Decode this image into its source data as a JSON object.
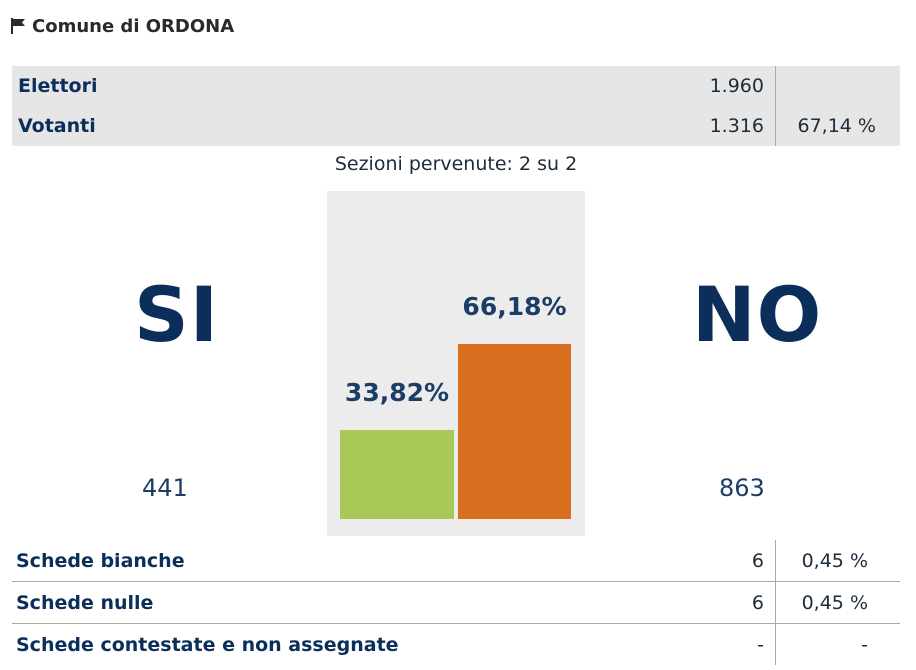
{
  "header": {
    "title": "Comune di ORDONA",
    "icon": "flag-icon"
  },
  "summary": {
    "elettori": {
      "label": "Elettori",
      "value": "1.960"
    },
    "votanti": {
      "label": "Votanti",
      "value": "1.316",
      "percent": "67,14 %"
    }
  },
  "sezioni": "Sezioni pervenute: 2 su 2",
  "options": {
    "si": {
      "label": "SI",
      "count": "441",
      "percent_label": "33,82%"
    },
    "no": {
      "label": "NO",
      "count": "863",
      "percent_label": "66,18%"
    }
  },
  "colors": {
    "si": "#a8c957",
    "no": "#d96f1e",
    "text": "#0b2f5a"
  },
  "chart_data": {
    "type": "bar",
    "categories": [
      "SI",
      "NO"
    ],
    "values": [
      33.82,
      66.18
    ],
    "ylim": [
      0,
      100
    ],
    "grid": false
  },
  "details": [
    {
      "label": "Schede bianche",
      "value": "6",
      "percent": "0,45 %"
    },
    {
      "label": "Schede nulle",
      "value": "6",
      "percent": "0,45 %"
    },
    {
      "label": "Schede contestate e non assegnate",
      "value": "-",
      "percent": "-"
    }
  ]
}
